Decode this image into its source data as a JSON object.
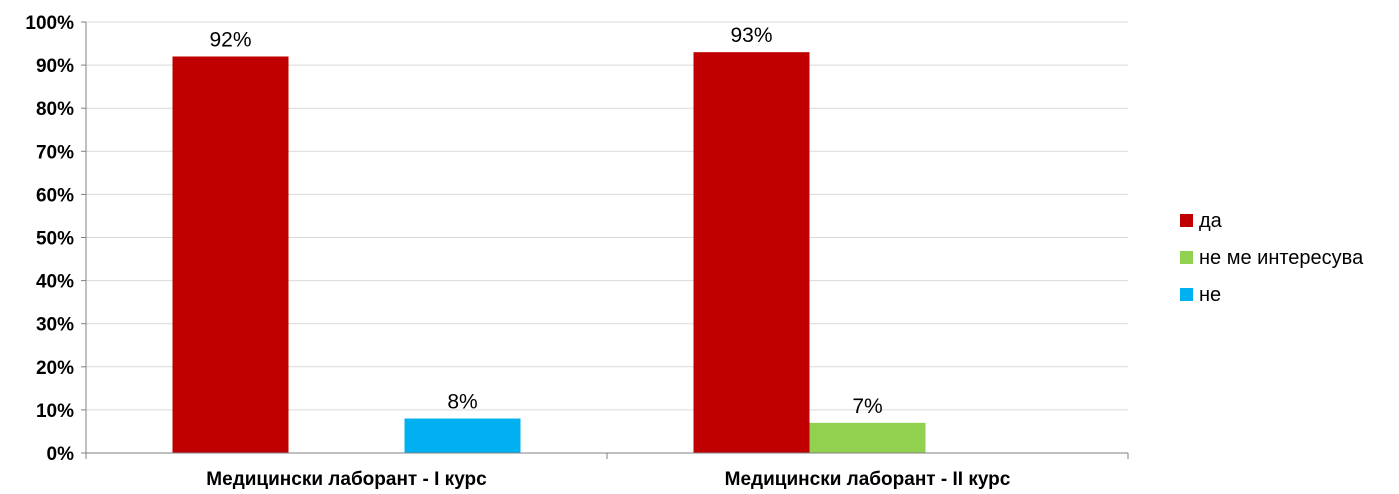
{
  "chart_data": {
    "type": "bar",
    "title": "",
    "xlabel": "",
    "ylabel": "",
    "categories": [
      "Медицински лаборант - I курс",
      "Медицински лаборант - II курс"
    ],
    "series": [
      {
        "name": "да",
        "color": "#C00000",
        "values": [
          92,
          93
        ],
        "labels": [
          "92%",
          "93%"
        ]
      },
      {
        "name": "не ме интересува",
        "color": "#92D050",
        "values": [
          null,
          7
        ],
        "labels": [
          "",
          "7%"
        ]
      },
      {
        "name": "не",
        "color": "#00B0F0",
        "values": [
          8,
          null
        ],
        "labels": [
          "8%",
          ""
        ]
      }
    ],
    "ylim": [
      0,
      100
    ],
    "yticks": [
      0,
      10,
      20,
      30,
      40,
      50,
      60,
      70,
      80,
      90,
      100
    ],
    "ytick_labels": [
      "0%",
      "10%",
      "20%",
      "30%",
      "40%",
      "50%",
      "60%",
      "70%",
      "80%",
      "90%",
      "100%"
    ],
    "grid": true,
    "legend_position": "right"
  }
}
